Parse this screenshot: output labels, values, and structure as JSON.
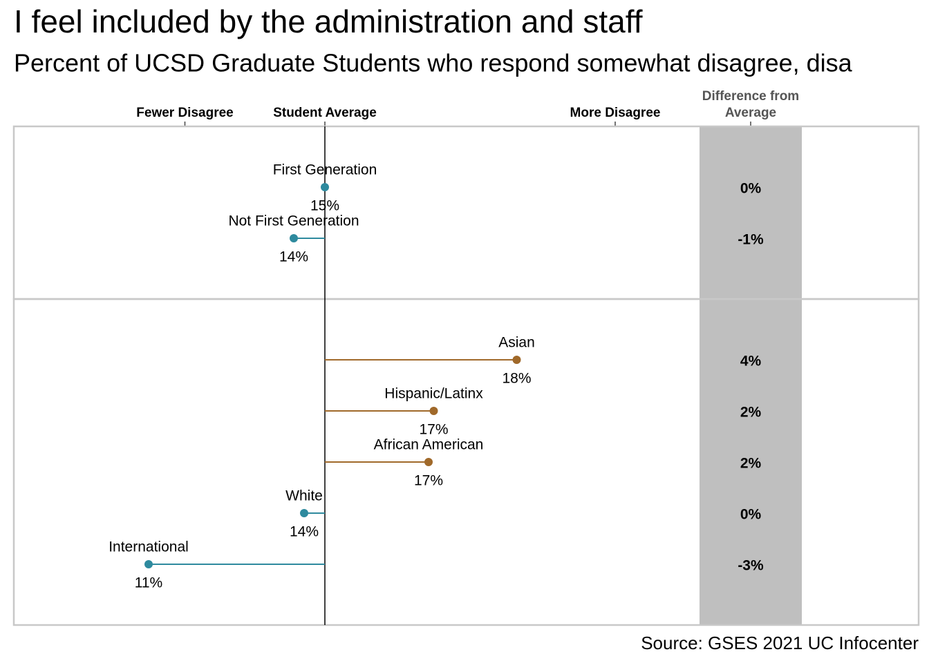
{
  "chart_data": {
    "type": "dot",
    "title": "I feel included by the administration and staff",
    "subtitle": "Percent of UCSD Graduate Students who respond somewhat disagree, disa",
    "source": "Source: GSES 2021 UC Infocenter",
    "difference_header": "Difference from Average",
    "xlim": [
      8.6,
      21.8
    ],
    "xticks": [
      {
        "value": 11.9,
        "label": "Fewer Disagree"
      },
      {
        "value": 14.6,
        "label": "Student Average"
      },
      {
        "value": 20.2,
        "label": "More Disagree"
      }
    ],
    "panels": [
      {
        "categories": [
          "First Generation",
          "Not First Generation"
        ],
        "values": [
          14.6,
          14.0
        ],
        "value_labels": [
          "15%",
          "14%"
        ],
        "differences": [
          0.0,
          -0.6
        ],
        "difference_labels": [
          "0%",
          "-1%"
        ],
        "colors": [
          "#2e8a9e",
          "#2e8a9e"
        ]
      },
      {
        "categories": [
          "Asian",
          "Hispanic/Latinx",
          "African American",
          "White",
          "International"
        ],
        "values": [
          18.3,
          16.7,
          16.6,
          14.2,
          11.2
        ],
        "value_labels": [
          "18%",
          "17%",
          "17%",
          "14%",
          "11%"
        ],
        "differences": [
          3.7,
          2.1,
          2.0,
          -0.4,
          -3.4
        ],
        "difference_labels": [
          "4%",
          "2%",
          "2%",
          "0%",
          "-3%"
        ],
        "colors": [
          "#a0692a",
          "#a0692a",
          "#a0692a",
          "#2e8a9e",
          "#2e8a9e"
        ]
      }
    ]
  }
}
